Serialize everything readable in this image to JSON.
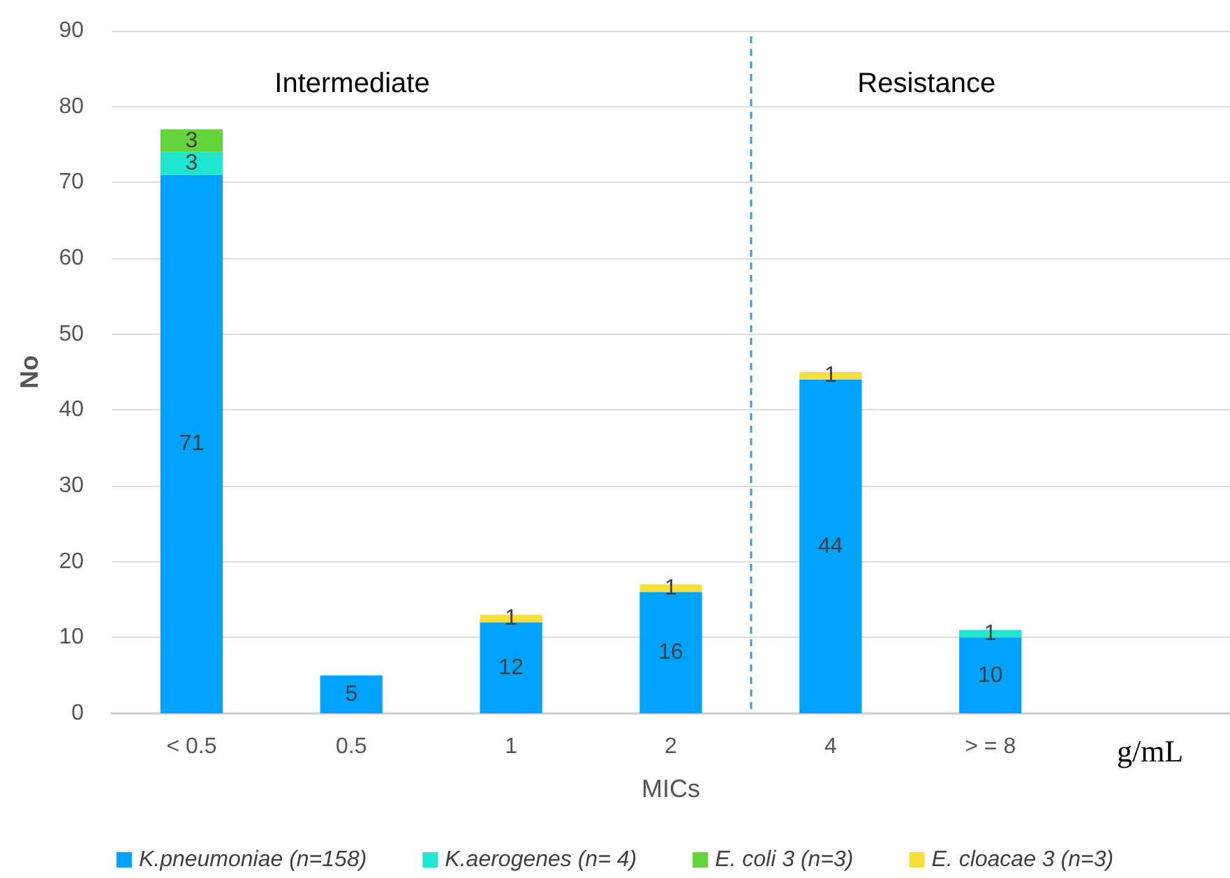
{
  "chart_data": {
    "type": "bar",
    "stacked": true,
    "xlabel": "MICs",
    "ylabel": "No",
    "categories": [
      "< 0.5",
      "0.5",
      "1",
      "2",
      "4",
      "> = 8",
      "g/mL"
    ],
    "series": [
      {
        "name": "K.pneumoniae (n=158)",
        "color": "#00a2ff",
        "values": [
          71,
          5,
          12,
          16,
          44,
          10,
          null
        ]
      },
      {
        "name": "K.aerogenes (n= 4)",
        "color": "#1ee6cf",
        "values": [
          3,
          null,
          null,
          null,
          null,
          1,
          null
        ]
      },
      {
        "name": "E. coli 3 (n=3)",
        "color": "#63d43c",
        "values": [
          3,
          null,
          null,
          null,
          null,
          null,
          null
        ]
      },
      {
        "name": "E. cloacae 3 (n=3)",
        "color": "#f7df3a",
        "values": [
          null,
          null,
          1,
          1,
          1,
          null,
          null
        ]
      }
    ],
    "ylim": [
      0,
      90
    ],
    "yticks": [
      0,
      10,
      20,
      30,
      40,
      50,
      60,
      70,
      80,
      90
    ],
    "grid": "y",
    "legend": "bottom",
    "data_labels": true,
    "annotations": [
      "Intermediate",
      "Resistance"
    ]
  }
}
